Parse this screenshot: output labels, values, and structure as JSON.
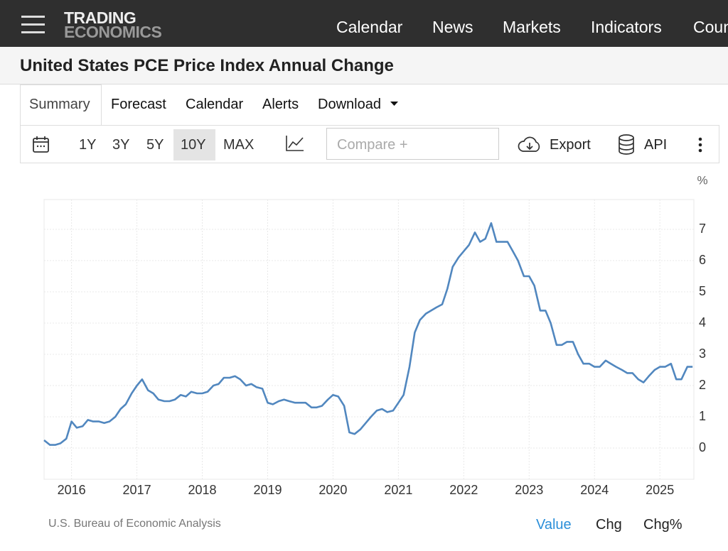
{
  "header": {
    "logo": [
      "TRADING",
      "ECONOMICS"
    ],
    "nav": [
      "Calendar",
      "News",
      "Markets",
      "Indicators",
      "Countries"
    ]
  },
  "page_title": "United States PCE Price Index Annual Change",
  "tabs": [
    "Summary",
    "Forecast",
    "Calendar",
    "Alerts",
    "Download"
  ],
  "toolbar": {
    "ranges": [
      "1Y",
      "3Y",
      "5Y",
      "10Y",
      "MAX"
    ],
    "compare": "Compare +",
    "export": "Export",
    "api": "API"
  },
  "chart_data": {
    "type": "line",
    "ylabel": "%",
    "grid": true,
    "xlim": [
      2015.58,
      2025.52
    ],
    "xticks": [
      2016,
      2017,
      2018,
      2019,
      2020,
      2021,
      2022,
      2023,
      2024,
      2025
    ],
    "ylim": [
      -1,
      8
    ],
    "yticks": [
      0,
      1,
      2,
      3,
      4,
      5,
      6,
      7
    ],
    "x": [
      2015.58,
      2015.67,
      2015.75,
      2015.83,
      2015.92,
      2016,
      2016.08,
      2016.17,
      2016.25,
      2016.33,
      2016.42,
      2016.5,
      2016.58,
      2016.67,
      2016.75,
      2016.83,
      2016.92,
      2017,
      2017.08,
      2017.17,
      2017.25,
      2017.33,
      2017.42,
      2017.5,
      2017.58,
      2017.67,
      2017.75,
      2017.83,
      2017.92,
      2018,
      2018.08,
      2018.17,
      2018.25,
      2018.33,
      2018.42,
      2018.5,
      2018.58,
      2018.67,
      2018.75,
      2018.83,
      2018.92,
      2019,
      2019.08,
      2019.17,
      2019.25,
      2019.33,
      2019.42,
      2019.5,
      2019.58,
      2019.67,
      2019.75,
      2019.83,
      2019.92,
      2020,
      2020.08,
      2020.17,
      2020.25,
      2020.33,
      2020.42,
      2020.5,
      2020.58,
      2020.67,
      2020.75,
      2020.83,
      2020.92,
      2021,
      2021.08,
      2021.17,
      2021.25,
      2021.33,
      2021.42,
      2021.5,
      2021.58,
      2021.67,
      2021.75,
      2021.83,
      2021.92,
      2022,
      2022.08,
      2022.17,
      2022.25,
      2022.33,
      2022.42,
      2022.5,
      2022.58,
      2022.67,
      2022.75,
      2022.83,
      2022.92,
      2023,
      2023.08,
      2023.17,
      2023.25,
      2023.33,
      2023.42,
      2023.5,
      2023.58,
      2023.67,
      2023.75,
      2023.83,
      2023.92,
      2024,
      2024.08,
      2024.17,
      2024.25,
      2024.33,
      2024.42,
      2024.5,
      2024.58,
      2024.67,
      2024.75,
      2024.83,
      2024.92,
      2025,
      2025.08,
      2025.17,
      2025.25,
      2025.33,
      2025.42,
      2025.5
    ],
    "series": [
      {
        "color": "#5187bf",
        "values": [
          0.25,
          0.1,
          0.1,
          0.15,
          0.3,
          0.85,
          0.65,
          0.7,
          0.9,
          0.85,
          0.85,
          0.8,
          0.85,
          1.0,
          1.25,
          1.4,
          1.75,
          2.0,
          2.2,
          1.85,
          1.75,
          1.55,
          1.5,
          1.5,
          1.55,
          1.7,
          1.65,
          1.8,
          1.75,
          1.75,
          1.8,
          2.0,
          2.05,
          2.25,
          2.25,
          2.3,
          2.2,
          2.0,
          2.05,
          1.95,
          1.9,
          1.45,
          1.4,
          1.5,
          1.55,
          1.5,
          1.45,
          1.45,
          1.45,
          1.3,
          1.3,
          1.35,
          1.55,
          1.7,
          1.65,
          1.35,
          0.5,
          0.45,
          0.6,
          0.8,
          1.0,
          1.2,
          1.25,
          1.15,
          1.2,
          1.45,
          1.7,
          2.6,
          3.7,
          4.1,
          4.3,
          4.4,
          4.5,
          4.6,
          5.1,
          5.8,
          6.1,
          6.3,
          6.5,
          6.9,
          6.6,
          6.7,
          7.2,
          6.6,
          6.6,
          6.6,
          6.3,
          6.0,
          5.5,
          5.5,
          5.2,
          4.4,
          4.4,
          4.0,
          3.3,
          3.3,
          3.4,
          3.4,
          3.0,
          2.7,
          2.7,
          2.6,
          2.6,
          2.8,
          2.7,
          2.6,
          2.5,
          2.4,
          2.4,
          2.2,
          2.1,
          2.3,
          2.5,
          2.6,
          2.6,
          2.7,
          2.2,
          2.2,
          2.6,
          2.6
        ]
      }
    ]
  },
  "source": "U.S. Bureau of Economic Analysis",
  "views": [
    "Value",
    "Chg",
    "Chg%"
  ]
}
